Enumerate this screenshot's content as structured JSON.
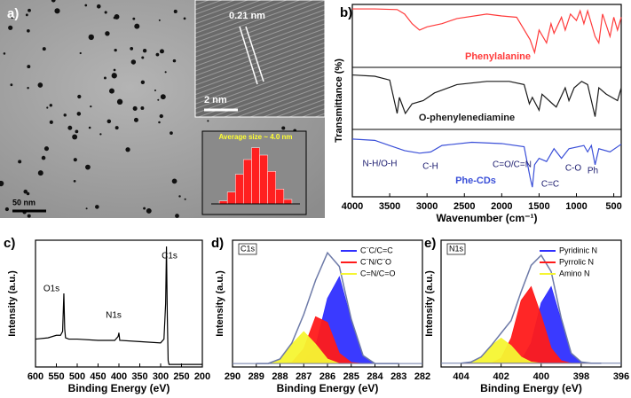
{
  "panel_a": {
    "label": "a)",
    "lattice_spacing": "0.21 nm",
    "inset_scale_bar": "2 nm",
    "scale_bar": "50 nm"
  },
  "chart_data": [
    {
      "type": "histogram",
      "title": "Average size ~ 4.0 nm",
      "color": "#ff2020",
      "bins": [
        2.2,
        2.6,
        3.0,
        3.4,
        3.8,
        4.2,
        4.6,
        5.0,
        5.4,
        5.8
      ],
      "values": [
        2,
        8,
        20,
        30,
        38,
        33,
        22,
        10,
        3
      ],
      "xlim": [
        1.8,
        6.2
      ],
      "ylim": [
        0,
        42
      ]
    },
    {
      "type": "line",
      "panel_label": "b)",
      "x_label": "Wavenumber (cm⁻¹)",
      "y_label": "Transmittance (%)",
      "xlim": [
        4000,
        400
      ],
      "ylim": [
        0,
        3
      ],
      "xticks": [
        4000,
        3500,
        3000,
        2500,
        2000,
        1500,
        1000,
        500
      ],
      "annotations": [
        "N-H/O-H",
        "C-H",
        "C=O/C=N",
        "C=C",
        "C-O",
        "Ph"
      ],
      "series": [
        {
          "name": "Phenylalanine",
          "color": "#ff3b3b",
          "x": [
            4000,
            3700,
            3400,
            3300,
            3200,
            3100,
            3000,
            2800,
            2600,
            2200,
            2000,
            1800,
            1620,
            1560,
            1500,
            1450,
            1400,
            1340,
            1300,
            1200,
            1150,
            1080,
            1000,
            950,
            900,
            850,
            750,
            700,
            650,
            550,
            500,
            450,
            400
          ],
          "values": [
            2.93,
            2.93,
            2.92,
            2.85,
            2.7,
            2.6,
            2.65,
            2.7,
            2.78,
            2.85,
            2.82,
            2.8,
            2.45,
            2.25,
            2.6,
            2.5,
            2.4,
            2.7,
            2.55,
            2.8,
            2.6,
            2.85,
            2.75,
            2.9,
            2.7,
            2.9,
            2.5,
            2.4,
            2.85,
            2.5,
            2.8,
            2.6,
            2.8
          ]
        },
        {
          "name": "O-phenylenediamine",
          "color": "#1a1a1a",
          "x": [
            4000,
            3700,
            3500,
            3400,
            3370,
            3290,
            3200,
            3050,
            2900,
            2600,
            2200,
            1900,
            1700,
            1630,
            1590,
            1500,
            1460,
            1320,
            1270,
            1150,
            1100,
            1030,
            930,
            850,
            750,
            700,
            600,
            450,
            400
          ],
          "values": [
            1.9,
            1.88,
            1.82,
            1.3,
            1.55,
            1.3,
            1.45,
            1.5,
            1.62,
            1.75,
            1.8,
            1.8,
            1.75,
            1.45,
            1.55,
            1.35,
            1.6,
            1.45,
            1.4,
            1.7,
            1.5,
            1.7,
            1.8,
            1.75,
            1.25,
            1.7,
            1.6,
            1.5,
            1.7
          ]
        },
        {
          "name": "Phe-CDs",
          "color": "#3a4fd8",
          "x": [
            4000,
            3700,
            3500,
            3300,
            3100,
            2950,
            2800,
            2400,
            2000,
            1700,
            1620,
            1590,
            1560,
            1500,
            1400,
            1300,
            1200,
            1100,
            900,
            850,
            800,
            750,
            700,
            550,
            400
          ],
          "values": [
            0.9,
            0.88,
            0.8,
            0.72,
            0.68,
            0.7,
            0.8,
            0.85,
            0.83,
            0.78,
            0.3,
            0.15,
            0.5,
            0.6,
            0.55,
            0.75,
            0.6,
            0.75,
            0.8,
            0.7,
            0.8,
            0.5,
            0.75,
            0.7,
            0.82
          ]
        }
      ]
    },
    {
      "type": "line",
      "panel_label": "c)",
      "x_label": "Binding Energy (eV)",
      "y_label": "Intensity (a.u.)",
      "xlim": [
        600,
        200
      ],
      "ylim": [
        0,
        1
      ],
      "xticks": [
        600,
        550,
        500,
        450,
        400,
        350,
        300,
        250,
        200
      ],
      "annotations": [
        "O1s",
        "N1s",
        "C1s"
      ],
      "series": [
        {
          "color": "#000000",
          "x": [
            600,
            570,
            550,
            540,
            535,
            532,
            530,
            528,
            520,
            500,
            450,
            410,
            402,
            400,
            398,
            350,
            300,
            292,
            288,
            286,
            284,
            282,
            280,
            270,
            240,
            200
          ],
          "values": [
            0.22,
            0.23,
            0.25,
            0.25,
            0.28,
            0.58,
            0.3,
            0.23,
            0.22,
            0.22,
            0.21,
            0.21,
            0.24,
            0.27,
            0.21,
            0.2,
            0.19,
            0.22,
            0.5,
            0.95,
            0.4,
            0.05,
            0.02,
            0.02,
            0.02,
            0.02
          ]
        }
      ]
    },
    {
      "type": "line",
      "panel_label": "d)",
      "tag": "C1s",
      "x_label": "Binding Energy (eV)",
      "y_label": "Intensity (a.u.)",
      "xlim": [
        290,
        282
      ],
      "ylim": [
        -0.03,
        1.08
      ],
      "xticks": [
        290,
        289,
        288,
        287,
        286,
        285,
        284,
        283,
        282
      ],
      "legend": "upper right",
      "x": [
        289,
        288.5,
        288,
        287.5,
        287,
        286.5,
        286,
        285.5,
        285,
        284.5,
        284,
        283.5,
        283
      ],
      "envelope": {
        "color": "#6d7aa8",
        "values": [
          0,
          0,
          0.04,
          0.18,
          0.43,
          0.73,
          0.97,
          0.85,
          0.39,
          0.07,
          0,
          0,
          0
        ]
      },
      "series": [
        {
          "name": "C¨C/C=C",
          "color": "#2f2fff",
          "style": "area",
          "values": [
            0,
            0,
            0,
            0,
            0.02,
            0.15,
            0.57,
            0.76,
            0.38,
            0.07,
            0,
            0,
            0
          ]
        },
        {
          "name": "C¨N/C¨O",
          "color": "#ff1a1a",
          "style": "area",
          "values": [
            0,
            0,
            0,
            0.01,
            0.13,
            0.41,
            0.36,
            0.09,
            0.01,
            0,
            0,
            0,
            0
          ]
        },
        {
          "name": "C=N/C=O",
          "color": "#f5f532",
          "style": "area",
          "values": [
            0,
            0,
            0.04,
            0.17,
            0.28,
            0.17,
            0.04,
            0,
            0,
            0,
            0,
            0,
            0
          ]
        }
      ]
    },
    {
      "type": "line",
      "panel_label": "e)",
      "tag": "N1s",
      "x_label": "Binding Energy (eV)",
      "y_label": "Intensity (a.u.)",
      "xlim": [
        405,
        396
      ],
      "ylim": [
        -0.03,
        0.98
      ],
      "xticks": [
        404,
        402,
        400,
        398,
        396
      ],
      "legend": "upper right",
      "x": [
        404,
        403.5,
        403,
        402.5,
        402,
        401.5,
        401,
        400.5,
        400,
        399.5,
        399,
        398.5,
        398,
        397.5,
        397
      ],
      "envelope": {
        "color": "#6d7aa8",
        "values": [
          0,
          0.01,
          0.05,
          0.14,
          0.24,
          0.34,
          0.57,
          0.78,
          0.86,
          0.73,
          0.36,
          0.08,
          0.01,
          0,
          0
        ]
      },
      "series": [
        {
          "name": "Pyridinic N",
          "color": "#2f2fff",
          "style": "area",
          "values": [
            0,
            0,
            0,
            0,
            0,
            0,
            0.02,
            0.16,
            0.48,
            0.61,
            0.34,
            0.08,
            0.01,
            0,
            0
          ]
        },
        {
          "name": "Pyrrolic N",
          "color": "#ff1a1a",
          "style": "area",
          "values": [
            0,
            0,
            0,
            0,
            0.04,
            0.2,
            0.5,
            0.61,
            0.38,
            0.12,
            0.02,
            0,
            0,
            0,
            0
          ]
        },
        {
          "name": "Amino N",
          "color": "#f5f532",
          "style": "area",
          "values": [
            0,
            0.01,
            0.05,
            0.14,
            0.2,
            0.14,
            0.05,
            0.01,
            0,
            0,
            0,
            0,
            0,
            0,
            0
          ]
        }
      ]
    }
  ]
}
